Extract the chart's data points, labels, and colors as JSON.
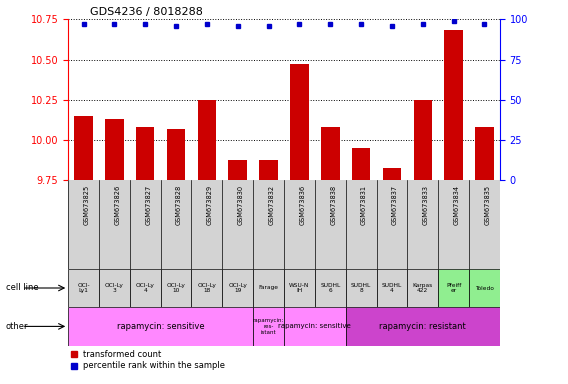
{
  "title": "GDS4236 / 8018288",
  "samples": [
    "GSM673825",
    "GSM673826",
    "GSM673827",
    "GSM673828",
    "GSM673829",
    "GSM673830",
    "GSM673832",
    "GSM673836",
    "GSM673838",
    "GSM673831",
    "GSM673837",
    "GSM673833",
    "GSM673834",
    "GSM673835"
  ],
  "transformed_counts": [
    10.15,
    10.13,
    10.08,
    10.07,
    10.25,
    9.88,
    9.88,
    10.47,
    10.08,
    9.95,
    9.83,
    10.25,
    10.68,
    10.08
  ],
  "percentile_ranks": [
    97,
    97,
    97,
    96,
    97,
    96,
    96,
    97,
    97,
    97,
    96,
    97,
    99,
    97
  ],
  "cell_lines": [
    "OCI-\nLy1",
    "OCI-Ly\n3",
    "OCI-Ly\n4",
    "OCI-Ly\n10",
    "OCI-Ly\n18",
    "OCI-Ly\n19",
    "Farage",
    "WSU-N\nIH",
    "SUDHL\n6",
    "SUDHL\n8",
    "SUDHL\n4",
    "Karpas\n422",
    "Pfeiff\ner",
    "Toledo"
  ],
  "cell_line_colors": [
    "#d3d3d3",
    "#d3d3d3",
    "#d3d3d3",
    "#d3d3d3",
    "#d3d3d3",
    "#d3d3d3",
    "#d3d3d3",
    "#d3d3d3",
    "#d3d3d3",
    "#d3d3d3",
    "#d3d3d3",
    "#d3d3d3",
    "#90ee90",
    "#90ee90"
  ],
  "other_groups": [
    {
      "label": "rapamycin: sensitive",
      "start": 0,
      "end": 6,
      "color": "#ff80ff"
    },
    {
      "label": "rapamycin:\nres-\nistant",
      "start": 6,
      "end": 7,
      "color": "#ff80ff",
      "small": true
    },
    {
      "label": "rapamycin: sensitive",
      "start": 7,
      "end": 9,
      "color": "#ff80ff",
      "small_text": true
    },
    {
      "label": "rapamycin: resistant",
      "start": 9,
      "end": 14,
      "color": "#ff80ff"
    }
  ],
  "ylim": [
    9.75,
    10.75
  ],
  "yticks_left": [
    9.75,
    10.0,
    10.25,
    10.5,
    10.75
  ],
  "yticks_right": [
    0,
    25,
    50,
    75,
    100
  ],
  "bar_color": "#cc0000",
  "dot_color": "#0000cc",
  "background_color": "#ffffff",
  "grid_color": "#000000"
}
